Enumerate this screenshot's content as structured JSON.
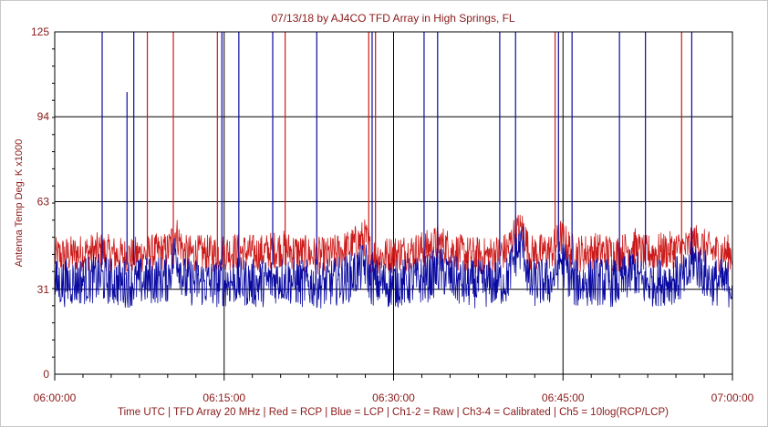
{
  "chart_data": {
    "type": "line",
    "title": "07/13/18  by  AJ4CO TFD Array  in  High Springs, FL",
    "ylabel": "Antenna Temp Deg. K x1000",
    "xlabel": "Time UTC | TFD Array 20 MHz | Red = RCP | Blue = LCP | Ch1-2 = Raw | Ch3-4 = Calibrated | Ch5 = 10log(RCP/LCP)",
    "ylim": [
      0,
      125
    ],
    "xlim_minutes": [
      0,
      60
    ],
    "y_ticks": [
      0,
      31,
      63,
      94,
      125
    ],
    "x_ticks": [
      {
        "minute": 0,
        "label": "06:00:00"
      },
      {
        "minute": 15,
        "label": "06:15:00"
      },
      {
        "minute": 30,
        "label": "06:30:00"
      },
      {
        "minute": 45,
        "label": "06:45:00"
      },
      {
        "minute": 60,
        "label": "07:00:00"
      }
    ],
    "grid": true,
    "colors": {
      "rcp": "#cc1a1a",
      "lcp": "#0a0aa0",
      "grid": "#000000",
      "text": "#8b1a1a"
    },
    "series": [
      {
        "name": "RCP",
        "color": "#cc1a1a",
        "minute": [
          0,
          2,
          4,
          6,
          8,
          10,
          10.7,
          11.5,
          14,
          16,
          18,
          20,
          22,
          24,
          26,
          27.5,
          28,
          29,
          30,
          32,
          33,
          34,
          36,
          38,
          40,
          40.8,
          41.5,
          42,
          44,
          44.8,
          46,
          48,
          50,
          51.3,
          52,
          54,
          56,
          56.5,
          58,
          60
        ],
        "value": [
          43,
          44,
          45,
          43,
          44,
          45,
          52,
          44,
          44,
          45,
          44,
          46,
          44,
          43,
          46,
          50,
          44,
          43,
          44,
          45,
          46,
          48,
          44,
          43,
          45,
          52,
          53,
          44,
          45,
          50,
          44,
          45,
          44,
          47,
          44,
          45,
          46,
          49,
          45,
          44
        ]
      },
      {
        "name": "LCP",
        "color": "#0a0aa0",
        "minute": [
          0,
          2,
          4,
          6,
          8,
          10,
          10.7,
          11.5,
          14,
          16,
          18,
          20,
          22,
          24,
          26,
          27.5,
          28,
          29,
          30,
          32,
          33,
          34,
          36,
          38,
          40,
          40.8,
          41.5,
          42,
          44,
          44.8,
          46,
          48,
          50,
          51.3,
          52,
          54,
          56,
          56.5,
          58,
          60
        ],
        "value": [
          33,
          34,
          35,
          33,
          34,
          35,
          45,
          34,
          33,
          34,
          33,
          35,
          33,
          33,
          35,
          40,
          34,
          33,
          33,
          34,
          35,
          38,
          33,
          33,
          34,
          44,
          47,
          33,
          34,
          42,
          33,
          34,
          33,
          38,
          33,
          34,
          35,
          42,
          34,
          33
        ]
      }
    ],
    "spikes": [
      {
        "minute": 4.2,
        "value": 125,
        "series": "LCP"
      },
      {
        "minute": 6.4,
        "value": 103,
        "series": "LCP"
      },
      {
        "minute": 7.0,
        "value": 125,
        "series": "LCP"
      },
      {
        "minute": 8.2,
        "value": 125,
        "series": "RCP"
      },
      {
        "minute": 10.5,
        "value": 125,
        "series": "RCP"
      },
      {
        "minute": 14.4,
        "value": 125,
        "series": "RCP"
      },
      {
        "minute": 14.8,
        "value": 125,
        "series": "LCP"
      },
      {
        "minute": 16.3,
        "value": 125,
        "series": "LCP"
      },
      {
        "minute": 19.3,
        "value": 125,
        "series": "LCP"
      },
      {
        "minute": 20.4,
        "value": 125,
        "series": "RCP"
      },
      {
        "minute": 23.2,
        "value": 125,
        "series": "LCP"
      },
      {
        "minute": 27.8,
        "value": 125,
        "series": "RCP"
      },
      {
        "minute": 28.1,
        "value": 125,
        "series": "LCP"
      },
      {
        "minute": 28.4,
        "value": 125,
        "series": "RCP"
      },
      {
        "minute": 32.7,
        "value": 125,
        "series": "LCP"
      },
      {
        "minute": 33.9,
        "value": 125,
        "series": "LCP"
      },
      {
        "minute": 39.4,
        "value": 125,
        "series": "LCP"
      },
      {
        "minute": 40.8,
        "value": 125,
        "series": "LCP"
      },
      {
        "minute": 44.3,
        "value": 125,
        "series": "RCP"
      },
      {
        "minute": 44.6,
        "value": 125,
        "series": "LCP"
      },
      {
        "minute": 45.8,
        "value": 125,
        "series": "LCP"
      },
      {
        "minute": 50.0,
        "value": 125,
        "series": "LCP"
      },
      {
        "minute": 52.3,
        "value": 125,
        "series": "LCP"
      },
      {
        "minute": 55.5,
        "value": 125,
        "series": "RCP"
      },
      {
        "minute": 56.4,
        "value": 125,
        "series": "LCP"
      }
    ]
  }
}
